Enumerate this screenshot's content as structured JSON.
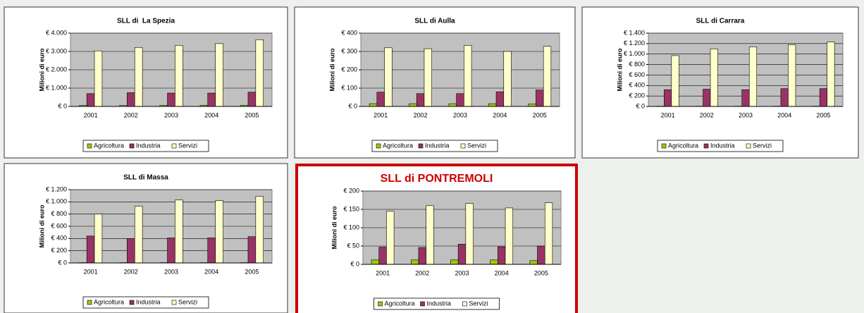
{
  "chart_data": [
    {
      "type": "bar",
      "title": "SLL di  La Spezia",
      "y_label": "Milioni di euro",
      "categories": [
        "2001",
        "2002",
        "2003",
        "2004",
        "2005"
      ],
      "series": [
        {
          "name": "Agricoltura",
          "color": "#99cc00",
          "values": [
            50,
            50,
            60,
            60,
            60
          ]
        },
        {
          "name": "Industria",
          "color": "#993366",
          "values": [
            700,
            750,
            730,
            730,
            780
          ]
        },
        {
          "name": "Servizi",
          "color": "#ffffcc",
          "values": [
            3030,
            3220,
            3330,
            3430,
            3640
          ]
        }
      ],
      "ylim": [
        0,
        4000
      ],
      "yticks": [
        {
          "value": 0,
          "label": "€ 0"
        },
        {
          "value": 1000,
          "label": "€ 1.000"
        },
        {
          "value": 2000,
          "label": "€ 2.000"
        },
        {
          "value": 3000,
          "label": "€ 3.000"
        },
        {
          "value": 4000,
          "label": "€ 4.000"
        }
      ],
      "grid": true,
      "legend": "bottom"
    },
    {
      "type": "bar",
      "title": "SLL di Aulla",
      "y_label": "Milioni di euro",
      "categories": [
        "2001",
        "2002",
        "2003",
        "2004",
        "2005"
      ],
      "series": [
        {
          "name": "Agricoltura",
          "color": "#99cc00",
          "values": [
            15,
            15,
            15,
            15,
            13
          ]
        },
        {
          "name": "Industria",
          "color": "#993366",
          "values": [
            78,
            70,
            70,
            80,
            90
          ]
        },
        {
          "name": "Servizi",
          "color": "#ffffcc",
          "values": [
            320,
            315,
            333,
            300,
            328
          ]
        }
      ],
      "ylim": [
        0,
        400
      ],
      "yticks": [
        {
          "value": 0,
          "label": "€ 0"
        },
        {
          "value": 100,
          "label": "€ 100"
        },
        {
          "value": 200,
          "label": "€ 200"
        },
        {
          "value": 300,
          "label": "€ 300"
        },
        {
          "value": 400,
          "label": "€ 400"
        }
      ],
      "grid": true,
      "legend": "bottom"
    },
    {
      "type": "bar",
      "title": "SLL di Carrara",
      "y_label": "Milioni di euro",
      "categories": [
        "2001",
        "2002",
        "2003",
        "2004",
        "2005"
      ],
      "series": [
        {
          "name": "Agricoltura",
          "color": "#99cc00",
          "values": [
            5,
            5,
            5,
            5,
            5
          ]
        },
        {
          "name": "Industria",
          "color": "#993366",
          "values": [
            320,
            330,
            320,
            340,
            340
          ]
        },
        {
          "name": "Servizi",
          "color": "#ffffcc",
          "values": [
            970,
            1100,
            1140,
            1180,
            1230
          ]
        }
      ],
      "ylim": [
        0,
        1400
      ],
      "yticks": [
        {
          "value": 0,
          "label": "€ 0"
        },
        {
          "value": 200,
          "label": "€ 200"
        },
        {
          "value": 400,
          "label": "€ 400"
        },
        {
          "value": 600,
          "label": "€ 600"
        },
        {
          "value": 800,
          "label": "€ 800"
        },
        {
          "value": 1000,
          "label": "€ 1.000"
        },
        {
          "value": 1200,
          "label": "€ 1.200"
        },
        {
          "value": 1400,
          "label": "€ 1.400"
        }
      ],
      "grid": true,
      "legend": "bottom"
    },
    {
      "type": "bar",
      "title": "SLL di Massa",
      "y_label": "Milioni di euro",
      "categories": [
        "2001",
        "2002",
        "2003",
        "2004",
        "2005"
      ],
      "series": [
        {
          "name": "Agricoltura",
          "color": "#99cc00",
          "values": [
            5,
            5,
            5,
            5,
            5
          ]
        },
        {
          "name": "Industria",
          "color": "#993366",
          "values": [
            440,
            400,
            410,
            410,
            430
          ]
        },
        {
          "name": "Servizi",
          "color": "#ffffcc",
          "values": [
            800,
            930,
            1030,
            1020,
            1090
          ]
        }
      ],
      "ylim": [
        0,
        1200
      ],
      "yticks": [
        {
          "value": 0,
          "label": "€ 0"
        },
        {
          "value": 200,
          "label": "€ 200"
        },
        {
          "value": 400,
          "label": "€ 400"
        },
        {
          "value": 600,
          "label": "€ 600"
        },
        {
          "value": 800,
          "label": "€ 800"
        },
        {
          "value": 1000,
          "label": "€ 1.000"
        },
        {
          "value": 1200,
          "label": "€ 1.200"
        }
      ],
      "grid": true,
      "legend": "bottom"
    },
    {
      "type": "bar",
      "title": "SLL di PONTREMOLI",
      "y_label": "Milioni di euro",
      "categories": [
        "2001",
        "2002",
        "2003",
        "2004",
        "2005"
      ],
      "series": [
        {
          "name": "Agricoltura",
          "color": "#99cc00",
          "values": [
            12,
            12,
            12,
            12,
            10
          ]
        },
        {
          "name": "Industria",
          "color": "#993366",
          "values": [
            47,
            46,
            55,
            48,
            50
          ]
        },
        {
          "name": "Servizi",
          "color": "#ffffcc",
          "values": [
            145,
            160,
            166,
            154,
            168
          ]
        }
      ],
      "ylim": [
        0,
        200
      ],
      "yticks": [
        {
          "value": 0,
          "label": "€ 0"
        },
        {
          "value": 50,
          "label": "€ 50"
        },
        {
          "value": 100,
          "label": "€ 100"
        },
        {
          "value": 150,
          "label": "€ 150"
        },
        {
          "value": 200,
          "label": "€ 200"
        }
      ],
      "grid": true,
      "legend": "bottom",
      "title_color": "#cc0000",
      "border_color": "#cc0000"
    }
  ]
}
